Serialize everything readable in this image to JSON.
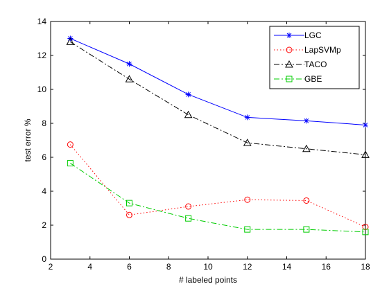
{
  "chart_data": {
    "type": "line",
    "xlabel": "# labeled points",
    "ylabel": "test error %",
    "xlim": [
      2,
      18
    ],
    "ylim": [
      0,
      14
    ],
    "xticks": [
      2,
      4,
      6,
      8,
      10,
      12,
      14,
      16,
      18
    ],
    "yticks": [
      0,
      2,
      4,
      6,
      8,
      10,
      12,
      14
    ],
    "grid": false,
    "legend_position": "top-right",
    "x": [
      3,
      6,
      9,
      12,
      15,
      18
    ],
    "series": [
      {
        "name": "LGC",
        "values": [
          13.0,
          11.5,
          9.7,
          8.35,
          8.15,
          7.9
        ],
        "color": "#0000ff",
        "marker": "asterisk",
        "line_style": "solid"
      },
      {
        "name": "LapSVMp",
        "values": [
          6.75,
          2.6,
          3.1,
          3.5,
          3.45,
          1.9
        ],
        "color": "#ff0000",
        "marker": "circle",
        "line_style": "dotted"
      },
      {
        "name": "TACO",
        "values": [
          12.8,
          10.6,
          8.5,
          6.85,
          6.5,
          6.15
        ],
        "color": "#000000",
        "marker": "triangle",
        "line_style": "dash-dot"
      },
      {
        "name": "GBE",
        "values": [
          5.65,
          3.3,
          2.4,
          1.75,
          1.75,
          1.6
        ],
        "color": "#00cc00",
        "marker": "square",
        "line_style": "dash-dot"
      }
    ]
  }
}
